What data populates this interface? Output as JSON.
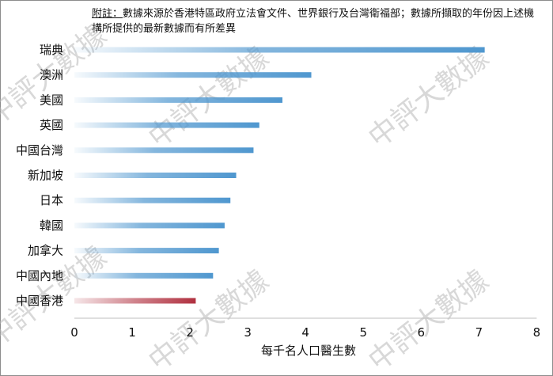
{
  "note": {
    "lead": "附註：",
    "text": "數據來源於香港特區政府立法會文件、世界銀行及台灣衛福部；數據所擷取的年份因上述機構所提供的最新數據而有所差異"
  },
  "watermark": "中評大數據",
  "chart_data": {
    "type": "bar",
    "orientation": "horizontal",
    "categories": [
      "瑞典",
      "澳洲",
      "美國",
      "英國",
      "中國台灣",
      "新加坡",
      "日本",
      "韓國",
      "加拿大",
      "中國內地",
      "中國香港"
    ],
    "values": [
      7.1,
      4.1,
      3.6,
      3.2,
      3.1,
      2.8,
      2.7,
      2.6,
      2.5,
      2.4,
      2.1
    ],
    "highlight": "中國香港",
    "xlabel": "每千名人口醫生數",
    "xlim": [
      0,
      8
    ],
    "xticks": [
      0,
      1,
      2,
      3,
      4,
      5,
      6,
      7,
      8
    ],
    "colors": {
      "bar": "#4f97cf",
      "highlight": "#b0303f",
      "axis": "#bfbfbf"
    }
  }
}
